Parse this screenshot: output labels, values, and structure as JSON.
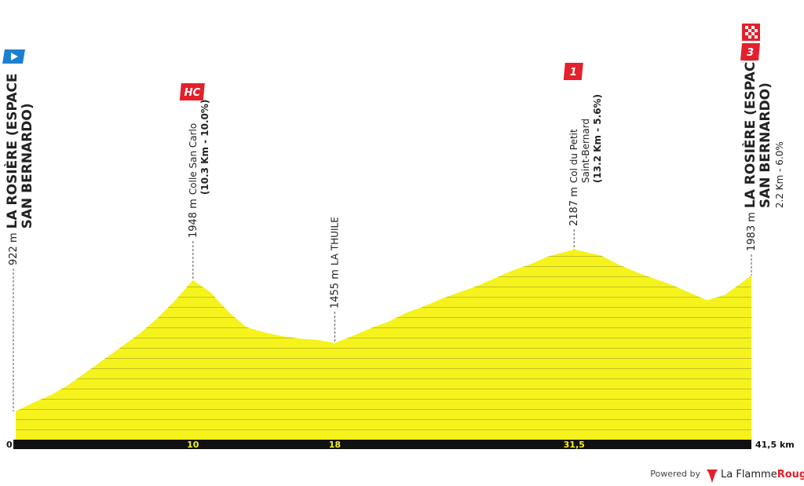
{
  "chart_data": {
    "type": "area",
    "color": "#f6f31c",
    "x": [
      0,
      1,
      2,
      3,
      4,
      5,
      6,
      7,
      8,
      9,
      10,
      11,
      12,
      13,
      14,
      15,
      16,
      17,
      18,
      19,
      20,
      21,
      22,
      23,
      24,
      25,
      26,
      27,
      28,
      29,
      30,
      31.5,
      33,
      34,
      35,
      36,
      37,
      38,
      39,
      40,
      41.5
    ],
    "values": [
      922,
      990,
      1050,
      1130,
      1230,
      1330,
      1430,
      1530,
      1650,
      1790,
      1948,
      1850,
      1700,
      1580,
      1540,
      1510,
      1490,
      1480,
      1455,
      1510,
      1570,
      1620,
      1690,
      1740,
      1800,
      1850,
      1900,
      1960,
      2020,
      2070,
      2130,
      2187,
      2140,
      2070,
      2010,
      1960,
      1910,
      1850,
      1790,
      1830,
      1983
    ],
    "xlim": [
      0,
      41.5
    ],
    "ylim": [
      700,
      2500
    ],
    "xticks": [
      0,
      10,
      18,
      {
        "value": 31.5,
        "label": "31,5"
      },
      {
        "value": 41.5,
        "label": "41,5 km"
      }
    ],
    "waypoints": [
      {
        "km": 0,
        "altitude": {
          "value": 922,
          "label": "922 m"
        },
        "name": [
          "LA ROSIÈRE (ESPACE",
          "SAN BERNARDO)"
        ],
        "emphasis": "major"
      },
      {
        "km": 10,
        "altitude": {
          "value": 1948,
          "label": "1948 m"
        },
        "name": [
          "Colle San Carlo"
        ],
        "detail": "(10.3 Km - 10.0%)",
        "detail_bold": true,
        "badge": "HC"
      },
      {
        "km": 18,
        "altitude": {
          "value": 1455,
          "label": "1455 m"
        },
        "name": [
          "LA THUILE"
        ]
      },
      {
        "km": 31.5,
        "altitude": {
          "value": 2187,
          "label": "2187 m"
        },
        "name": [
          "Col du Petit",
          "Saint-Bernard"
        ],
        "detail": "(13.2 Km - 5.6%)",
        "detail_bold": true,
        "badge": "1"
      },
      {
        "km": 41.5,
        "altitude": {
          "value": 1983,
          "label": "1983 m"
        },
        "name": [
          "LA ROSIÈRE (ESPACE",
          "SAN BERNARDO)"
        ],
        "detail": "2.2 Km - 6.0%",
        "emphasis": "major",
        "badge": "3"
      }
    ]
  },
  "footer": {
    "powered": "Powered by",
    "brand": "La Flamme",
    "brand_accent": "Rouge"
  }
}
